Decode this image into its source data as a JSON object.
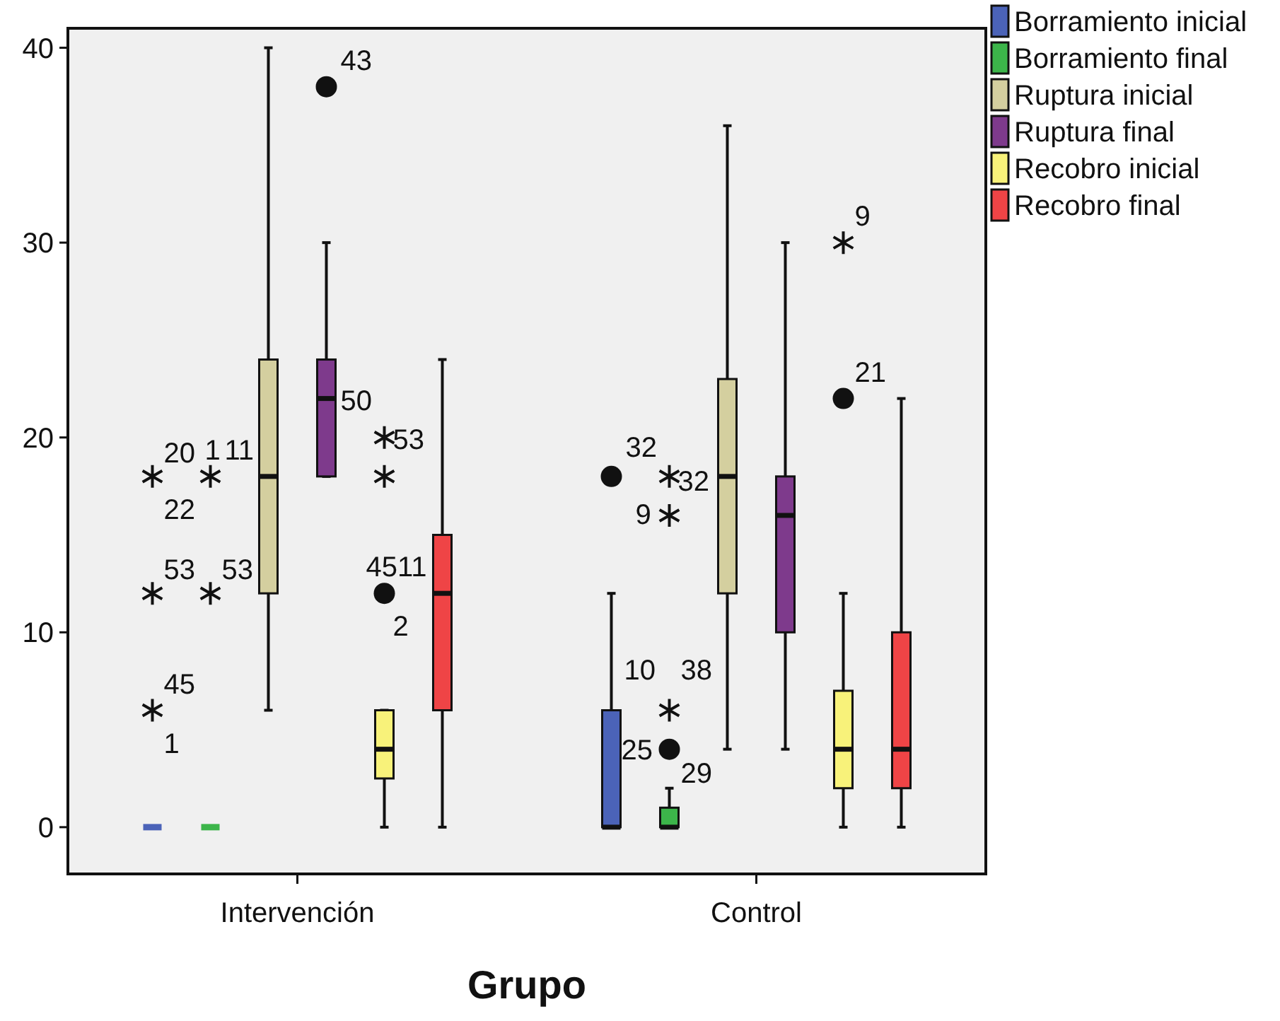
{
  "chart_data": {
    "type": "box",
    "xlabel": "Grupo",
    "categories": [
      "Intervención",
      "Control"
    ],
    "ylim": [
      -2.4,
      41
    ],
    "yticks": [
      0,
      10,
      20,
      30,
      40
    ],
    "legend": "top right",
    "grid": false,
    "series": [
      {
        "name": "Borramiento inicial",
        "color": "#4b63b8",
        "boxes": [
          {
            "low": 0,
            "q1": 0,
            "median": 0,
            "q3": 0,
            "high": 0,
            "outliers": [
              18,
              12,
              6
            ]
          },
          {
            "low": 0,
            "q1": 0,
            "median": 0,
            "q3": 6,
            "high": 12,
            "outliers": [
              18
            ]
          }
        ]
      },
      {
        "name": "Borramiento final",
        "color": "#3cb54a",
        "boxes": [
          {
            "low": 0,
            "q1": 0,
            "median": 0,
            "q3": 0,
            "high": 0,
            "outliers": [
              18,
              12
            ]
          },
          {
            "low": 0,
            "q1": 0,
            "median": 0,
            "q3": 1,
            "high": 2,
            "outliers": [
              4,
              6,
              16,
              18
            ]
          }
        ]
      },
      {
        "name": "Ruptura inicial",
        "color": "#d4cf9f",
        "boxes": [
          {
            "low": 6,
            "q1": 12,
            "median": 18,
            "q3": 24,
            "high": 40
          },
          {
            "low": 4,
            "q1": 12,
            "median": 18,
            "q3": 23,
            "high": 36
          }
        ]
      },
      {
        "name": "Ruptura final",
        "color": "#7e3a8c",
        "boxes": [
          {
            "low": 18,
            "q1": 18,
            "median": 22,
            "q3": 24,
            "high": 30,
            "outliers": [
              38
            ]
          },
          {
            "low": 4,
            "q1": 10,
            "median": 16,
            "q3": 18,
            "high": 30
          }
        ]
      },
      {
        "name": "Recobro inicial",
        "color": "#f8f27a",
        "boxes": [
          {
            "low": 0,
            "q1": 2.5,
            "median": 4,
            "q3": 6,
            "high": 6,
            "outliers": [
              20,
              18,
              12
            ]
          },
          {
            "low": 0,
            "q1": 2,
            "median": 4,
            "q3": 7,
            "high": 12,
            "outliers": [
              22,
              30
            ]
          }
        ]
      },
      {
        "name": "Recobro final",
        "color": "#ef4446",
        "boxes": [
          {
            "low": 0,
            "q1": 6,
            "median": 12,
            "q3": 15,
            "high": 24
          },
          {
            "low": 0,
            "q1": 2,
            "median": 4,
            "q3": 10,
            "high": 22
          }
        ]
      }
    ],
    "annotations": [
      "20",
      "22",
      "1",
      "11",
      "53",
      "53",
      "4511",
      "2",
      "45",
      "1",
      "43",
      "50",
      "53",
      "32",
      "32",
      "9",
      "10",
      "38",
      "25",
      "29",
      "21",
      "9"
    ]
  }
}
